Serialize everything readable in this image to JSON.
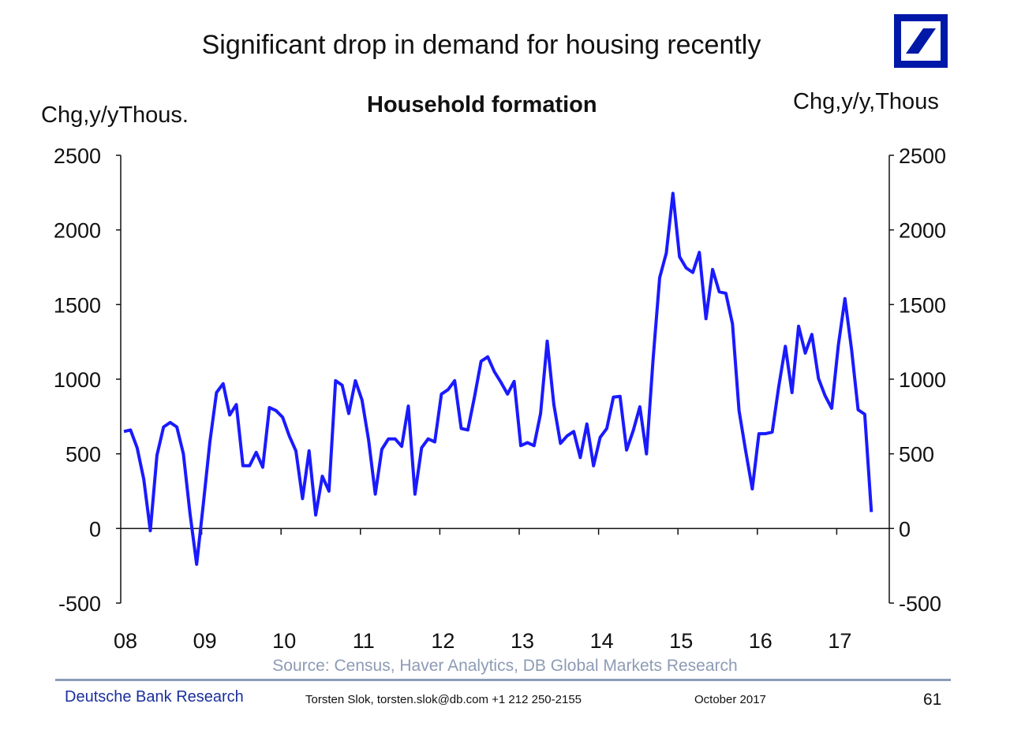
{
  "header": {
    "title": "Significant drop in demand for housing recently",
    "logo": "Deutsche Bank logo"
  },
  "footer": {
    "source": "Source: Census, Haver Analytics, DB Global Markets Research",
    "brand": "Deutsche Bank Research",
    "contact": "Torsten Slok, torsten.slok@db.com  +1 212 250-2155",
    "date": "October  2017",
    "page": "61"
  },
  "colors": {
    "line": "#1a1aff",
    "logo": "#0018a8",
    "source": "#8d9bb5",
    "brand": "#1b2f9c"
  },
  "chart_data": {
    "type": "line",
    "title": "Household formation",
    "ylabel_left": "Chg,y/yThous.",
    "ylabel_right": "Chg,y/y,Thous",
    "ylim": [
      -500,
      2500
    ],
    "yticks": [
      "2500",
      "2000",
      "1500",
      "1000",
      "500",
      "0",
      "-500"
    ],
    "xticks": [
      "08",
      "09",
      "10",
      "11",
      "12",
      "13",
      "14",
      "15",
      "16",
      "17"
    ],
    "grid": false,
    "x": [
      "2008-01",
      "2008-02",
      "2008-03",
      "2008-04",
      "2008-05",
      "2008-06",
      "2008-07",
      "2008-08",
      "2008-09",
      "2008-10",
      "2008-11",
      "2008-12",
      "2009-01",
      "2009-02",
      "2009-03",
      "2009-04",
      "2009-05",
      "2009-06",
      "2009-07",
      "2009-08",
      "2009-09",
      "2009-10",
      "2009-11",
      "2009-12",
      "2010-01",
      "2010-02",
      "2010-03",
      "2010-04",
      "2010-05",
      "2010-06",
      "2010-07",
      "2010-08",
      "2010-09",
      "2010-10",
      "2010-11",
      "2010-12",
      "2011-01",
      "2011-02",
      "2011-03",
      "2011-04",
      "2011-05",
      "2011-06",
      "2011-07",
      "2011-08",
      "2011-09",
      "2011-10",
      "2011-11",
      "2011-12",
      "2012-01",
      "2012-02",
      "2012-03",
      "2012-04",
      "2012-05",
      "2012-06",
      "2012-07",
      "2012-08",
      "2012-09",
      "2012-10",
      "2012-11",
      "2012-12",
      "2013-01",
      "2013-02",
      "2013-03",
      "2013-04",
      "2013-05",
      "2013-06",
      "2013-07",
      "2013-08",
      "2013-09",
      "2013-10",
      "2013-11",
      "2013-12",
      "2014-01",
      "2014-02",
      "2014-03",
      "2014-04",
      "2014-05",
      "2014-06",
      "2014-07",
      "2014-08",
      "2014-09",
      "2014-10",
      "2014-11",
      "2014-12",
      "2015-01",
      "2015-02",
      "2015-03",
      "2015-04",
      "2015-05",
      "2015-06",
      "2015-07",
      "2015-08",
      "2015-09",
      "2015-10",
      "2015-11",
      "2015-12",
      "2016-01",
      "2016-02",
      "2016-03",
      "2016-04",
      "2016-05",
      "2016-06",
      "2016-07",
      "2016-08",
      "2016-09",
      "2016-10",
      "2016-11",
      "2016-12",
      "2017-01",
      "2017-02",
      "2017-03",
      "2017-04",
      "2017-05",
      "2017-06"
    ],
    "series": [
      {
        "values": [
          650,
          660,
          540,
          330,
          -15,
          490,
          680,
          710,
          680,
          500,
          100,
          -240,
          160,
          580,
          910,
          970,
          760,
          830,
          420,
          420,
          510,
          410,
          810,
          790,
          745,
          620,
          520,
          200,
          520,
          90,
          350,
          250,
          990,
          960,
          770,
          990,
          860,
          590,
          230,
          530,
          600,
          600,
          550,
          820,
          230,
          540,
          600,
          580,
          900,
          930,
          990,
          670,
          660,
          880,
          1120,
          1150,
          1050,
          980,
          900,
          985,
          555,
          575,
          555,
          770,
          1255,
          830,
          570,
          620,
          650,
          475,
          700,
          420,
          610,
          670,
          880,
          885,
          525,
          655,
          815,
          500,
          1135,
          1680,
          1845,
          2245,
          1820,
          1745,
          1715,
          1850,
          1405,
          1735,
          1585,
          1575,
          1370,
          790,
          520,
          265,
          635,
          635,
          645,
          950,
          1220,
          910,
          1355,
          1175,
          1300,
          1005,
          890,
          805,
          1225,
          1540,
          1200,
          795,
          765,
          110
        ]
      }
    ]
  }
}
